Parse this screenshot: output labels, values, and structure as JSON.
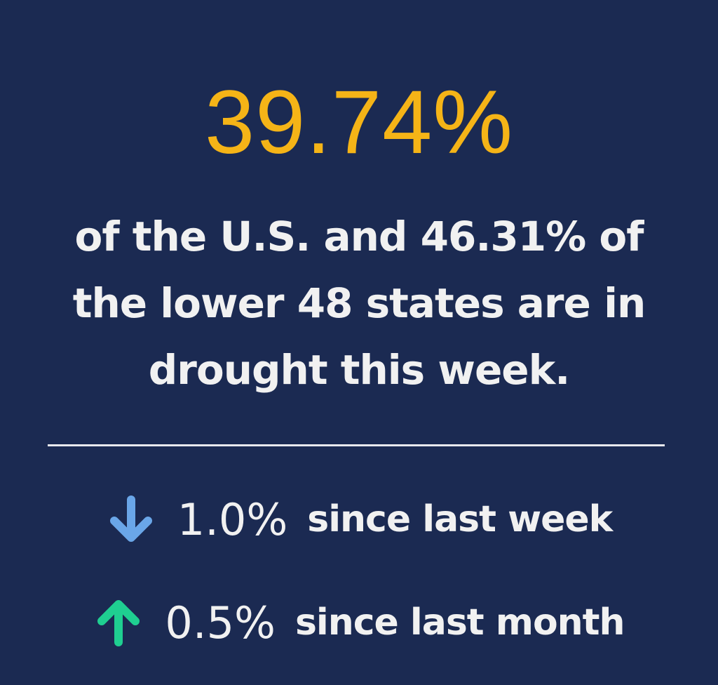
{
  "main_stat": {
    "value": "39.74%",
    "description": "of the U.S. and 46.31% of the lower 48 states are in drought this week."
  },
  "changes": [
    {
      "icon": "arrow-down-icon",
      "direction": "down",
      "color": "#6aa6e8",
      "value": "1.0%",
      "label": "since last week"
    },
    {
      "icon": "arrow-up-icon",
      "direction": "up",
      "color": "#1fcf91",
      "value": "0.5%",
      "label": "since last month"
    }
  ],
  "colors": {
    "background": "#1b2a52",
    "headline": "#f5b417",
    "text": "#f1f1f1",
    "divider": "#e9e9ee"
  }
}
